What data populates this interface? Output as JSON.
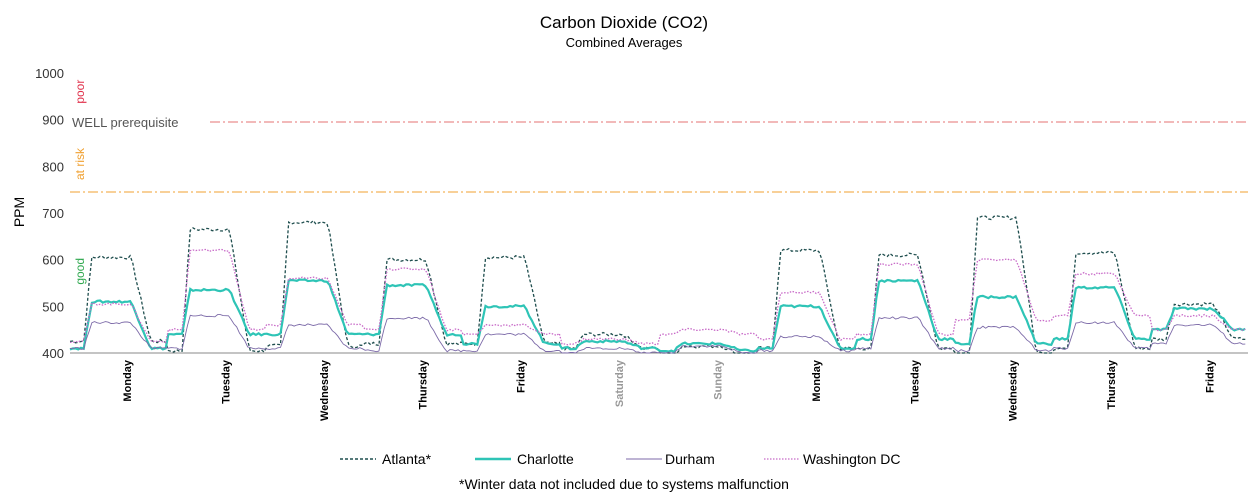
{
  "chart_data": {
    "type": "line",
    "title": "Carbon Dioxide (CO2)",
    "subtitle": "Combined Averages",
    "ylabel": "PPM",
    "xlabel": "",
    "ylim": [
      400,
      1000
    ],
    "yticks": [
      400,
      500,
      600,
      700,
      800,
      900,
      1000
    ],
    "grid": false,
    "legend_position": "bottom",
    "footnote": "*Winter data not included due to systems malfunction",
    "categories": [
      "Monday",
      "Tuesday",
      "Wednesday",
      "Thursday",
      "Friday",
      "Saturday",
      "Sunday",
      "Monday",
      "Tuesday",
      "Wednesday",
      "Thursday",
      "Friday"
    ],
    "weekend_categories": [
      "Saturday",
      "Sunday"
    ],
    "zones": [
      {
        "label": "poor",
        "y": 960,
        "color": "#e0304a"
      },
      {
        "label": "at risk",
        "y": 805,
        "color": "#f0a030"
      },
      {
        "label": "good",
        "y": 575,
        "color": "#2fa84f"
      }
    ],
    "reference_lines": [
      {
        "label": "WELL prerequisite",
        "y": 895,
        "color": "#e57373",
        "style": "dash-dot"
      },
      {
        "label": "",
        "y": 745,
        "color": "#f0a030",
        "style": "dash-dot"
      }
    ],
    "series": [
      {
        "name": "Atlanta*",
        "color": "#1f4e4e",
        "style": "dashed",
        "day_peaks": [
          605,
          665,
          680,
          600,
          605,
          440,
          415,
          620,
          610,
          690,
          615,
          505
        ],
        "day_offpeak": [
          425,
          405,
          415,
          420,
          420,
          410,
          395,
          410,
          410,
          400,
          410,
          430
        ]
      },
      {
        "name": "Charlotte",
        "color": "#2ec4b6",
        "style": "solid",
        "day_peaks": [
          510,
          535,
          555,
          545,
          500,
          425,
          420,
          500,
          555,
          520,
          540,
          495
        ],
        "day_offpeak": [
          410,
          440,
          440,
          440,
          420,
          410,
          405,
          410,
          430,
          420,
          430,
          450
        ]
      },
      {
        "name": "Durham",
        "color": "#7c6aa8",
        "style": "solid",
        "day_peaks": [
          465,
          480,
          460,
          475,
          440,
          410,
          415,
          435,
          475,
          455,
          465,
          460
        ],
        "day_offpeak": [
          410,
          410,
          410,
          405,
          405,
          400,
          400,
          405,
          410,
          405,
          410,
          420
        ]
      },
      {
        "name": "Washington DC",
        "color": "#c86ac8",
        "style": "dotted",
        "day_peaks": [
          505,
          620,
          560,
          580,
          460,
          430,
          450,
          530,
          590,
          600,
          570,
          480
        ],
        "day_offpeak": [
          425,
          450,
          460,
          450,
          440,
          420,
          440,
          430,
          440,
          470,
          480,
          450
        ]
      }
    ]
  }
}
